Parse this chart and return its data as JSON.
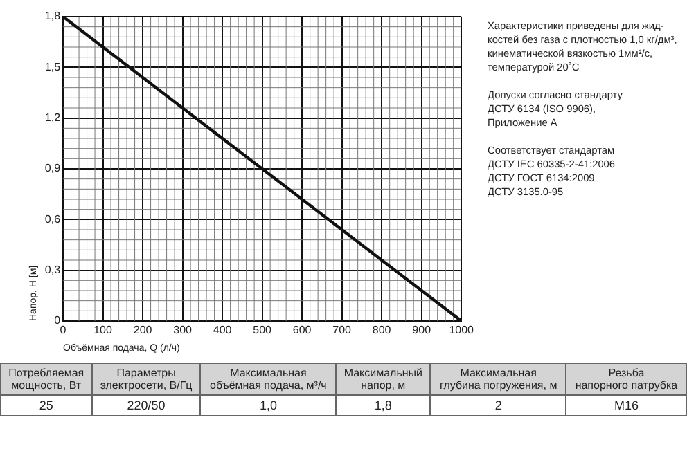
{
  "chart_data": {
    "type": "line",
    "xlabel": "Объёмная подача, Q (л/ч)",
    "ylabel": "Напор, H [м]",
    "x": [
      0,
      1000
    ],
    "series": [
      {
        "color": "#111111",
        "values": [
          1.8,
          0
        ]
      }
    ],
    "xlim": [
      0,
      1000
    ],
    "xticks": [
      0,
      100,
      200,
      300,
      400,
      500,
      600,
      700,
      800,
      900,
      1000
    ],
    "ylim": [
      0,
      1.8
    ],
    "yticks": [
      0,
      {
        "value": 0.3,
        "label": "0,3"
      },
      {
        "value": 0.6,
        "label": "0,6"
      },
      {
        "value": 0.9,
        "label": "0,9"
      },
      {
        "value": 1.2,
        "label": "1,2"
      },
      {
        "value": 1.5,
        "label": "1,5"
      },
      {
        "value": 1.8,
        "label": "1,8"
      }
    ],
    "grid": true,
    "legend": false,
    "marker": "none",
    "line_style": "solid",
    "annotations": [
      "Характеристики приведены для жид-\nкостей без газа с плотностью 1,0 кг/дм³,\nкинематической вязкостью 1мм²/с,\nтемпературой 20˚С",
      "Допуски согласно стандарту\nДСТУ 6134 (ISO 9906),\nПриложение А",
      "Соответствует стандартам\nДСТУ IEC 60335-2-41:2006\nДСТУ ГОСТ 6134:2009\nДСТУ 3135.0-95",
      "Потребляемая\nмощность, Вт",
      "Параметры\nэлектросети, В/Гц",
      "Максимальная\nобъёмная подача, м³/ч",
      "Максимальный\nнапор, м",
      "Максимальная\nглубина погружения, м",
      "Резьба\nнапорного патрубка",
      "25",
      "220/50",
      "1,0",
      "1,8",
      "2",
      "M16"
    ]
  }
}
